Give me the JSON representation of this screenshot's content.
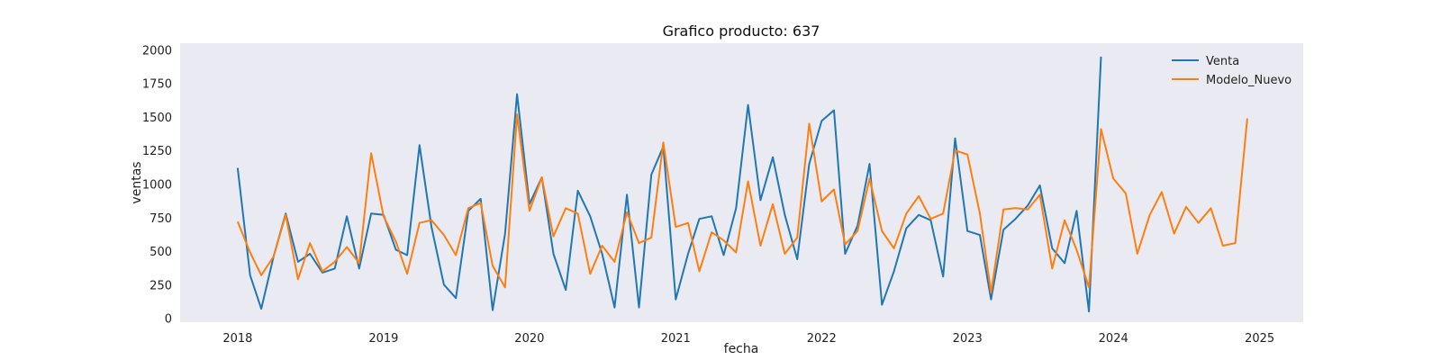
{
  "chart_data": {
    "type": "line",
    "title": "Grafico producto: 637",
    "xlabel": "fecha",
    "ylabel": "ventas",
    "ylim": [
      -30,
      2050
    ],
    "y_ticks": [
      0,
      250,
      500,
      750,
      1000,
      1250,
      1500,
      1750,
      2000
    ],
    "xlim": [
      "2017-08-10",
      "2025-04-20"
    ],
    "x_ticks": [
      {
        "date": "2018-01-01",
        "label": "2018"
      },
      {
        "date": "2019-01-01",
        "label": "2019"
      },
      {
        "date": "2020-01-01",
        "label": "2020"
      },
      {
        "date": "2021-01-01",
        "label": "2021"
      },
      {
        "date": "2022-01-01",
        "label": "2022"
      },
      {
        "date": "2023-01-01",
        "label": "2023"
      },
      {
        "date": "2024-01-01",
        "label": "2024"
      },
      {
        "date": "2025-01-01",
        "label": "2025"
      }
    ],
    "background": "#eaeaf2",
    "grid": false,
    "legend_position": "top-right",
    "x": [
      "2018-01-01",
      "2018-02-01",
      "2018-03-01",
      "2018-04-01",
      "2018-05-01",
      "2018-06-01",
      "2018-07-01",
      "2018-08-01",
      "2018-09-01",
      "2018-10-01",
      "2018-11-01",
      "2018-12-01",
      "2019-01-01",
      "2019-02-01",
      "2019-03-01",
      "2019-04-01",
      "2019-05-01",
      "2019-06-01",
      "2019-07-01",
      "2019-08-01",
      "2019-09-01",
      "2019-10-01",
      "2019-11-01",
      "2019-12-01",
      "2020-01-01",
      "2020-02-01",
      "2020-03-01",
      "2020-04-01",
      "2020-05-01",
      "2020-06-01",
      "2020-07-01",
      "2020-08-01",
      "2020-09-01",
      "2020-10-01",
      "2020-11-01",
      "2020-12-01",
      "2021-01-01",
      "2021-02-01",
      "2021-03-01",
      "2021-04-01",
      "2021-05-01",
      "2021-06-01",
      "2021-07-01",
      "2021-08-01",
      "2021-09-01",
      "2021-10-01",
      "2021-11-01",
      "2021-12-01",
      "2022-01-01",
      "2022-02-01",
      "2022-03-01",
      "2022-04-01",
      "2022-05-01",
      "2022-06-01",
      "2022-07-01",
      "2022-08-01",
      "2022-09-01",
      "2022-10-01",
      "2022-11-01",
      "2022-12-01",
      "2023-01-01",
      "2023-02-01",
      "2023-03-01",
      "2023-04-01",
      "2023-05-01",
      "2023-06-01",
      "2023-07-01",
      "2023-08-01",
      "2023-09-01",
      "2023-10-01",
      "2023-11-01",
      "2023-12-01",
      "2024-01-01",
      "2024-02-01",
      "2024-03-01",
      "2024-04-01",
      "2024-05-01",
      "2024-06-01",
      "2024-07-01",
      "2024-08-01",
      "2024-09-01",
      "2024-10-01",
      "2024-11-01",
      "2024-12-01"
    ],
    "series": [
      {
        "name": "Venta",
        "color": "#1f77b4",
        "values": [
          1120,
          320,
          70,
          460,
          780,
          420,
          480,
          340,
          370,
          760,
          370,
          780,
          770,
          510,
          470,
          1290,
          680,
          250,
          150,
          800,
          890,
          60,
          630,
          1670,
          850,
          1050,
          480,
          210,
          950,
          760,
          480,
          80,
          920,
          80,
          1070,
          1280,
          140,
          480,
          740,
          760,
          470,
          820,
          1590,
          880,
          1200,
          770,
          440,
          1150,
          1470,
          1550,
          480,
          690,
          1150,
          100,
          350,
          670,
          770,
          730,
          310,
          1340,
          650,
          620,
          140,
          660,
          740,
          840,
          990,
          520,
          410,
          800,
          50,
          1950,
          null,
          null,
          null,
          null,
          null,
          null,
          null,
          null,
          null,
          null,
          null,
          null
        ]
      },
      {
        "name": "Modelo_Nuevo",
        "color": "#ff7f0e",
        "values": [
          720,
          490,
          320,
          460,
          770,
          290,
          560,
          350,
          420,
          530,
          410,
          1230,
          760,
          570,
          330,
          710,
          730,
          620,
          470,
          820,
          860,
          390,
          230,
          1520,
          800,
          1050,
          610,
          820,
          780,
          330,
          540,
          420,
          790,
          560,
          600,
          1310,
          680,
          710,
          350,
          640,
          580,
          490,
          1020,
          540,
          850,
          480,
          600,
          1450,
          870,
          960,
          550,
          650,
          1040,
          650,
          520,
          780,
          910,
          740,
          780,
          1250,
          1220,
          780,
          190,
          810,
          820,
          810,
          920,
          370,
          730,
          510,
          230,
          1410,
          1040,
          930,
          480,
          770,
          940,
          630,
          830,
          710,
          820,
          540,
          560,
          1490
        ]
      }
    ]
  }
}
